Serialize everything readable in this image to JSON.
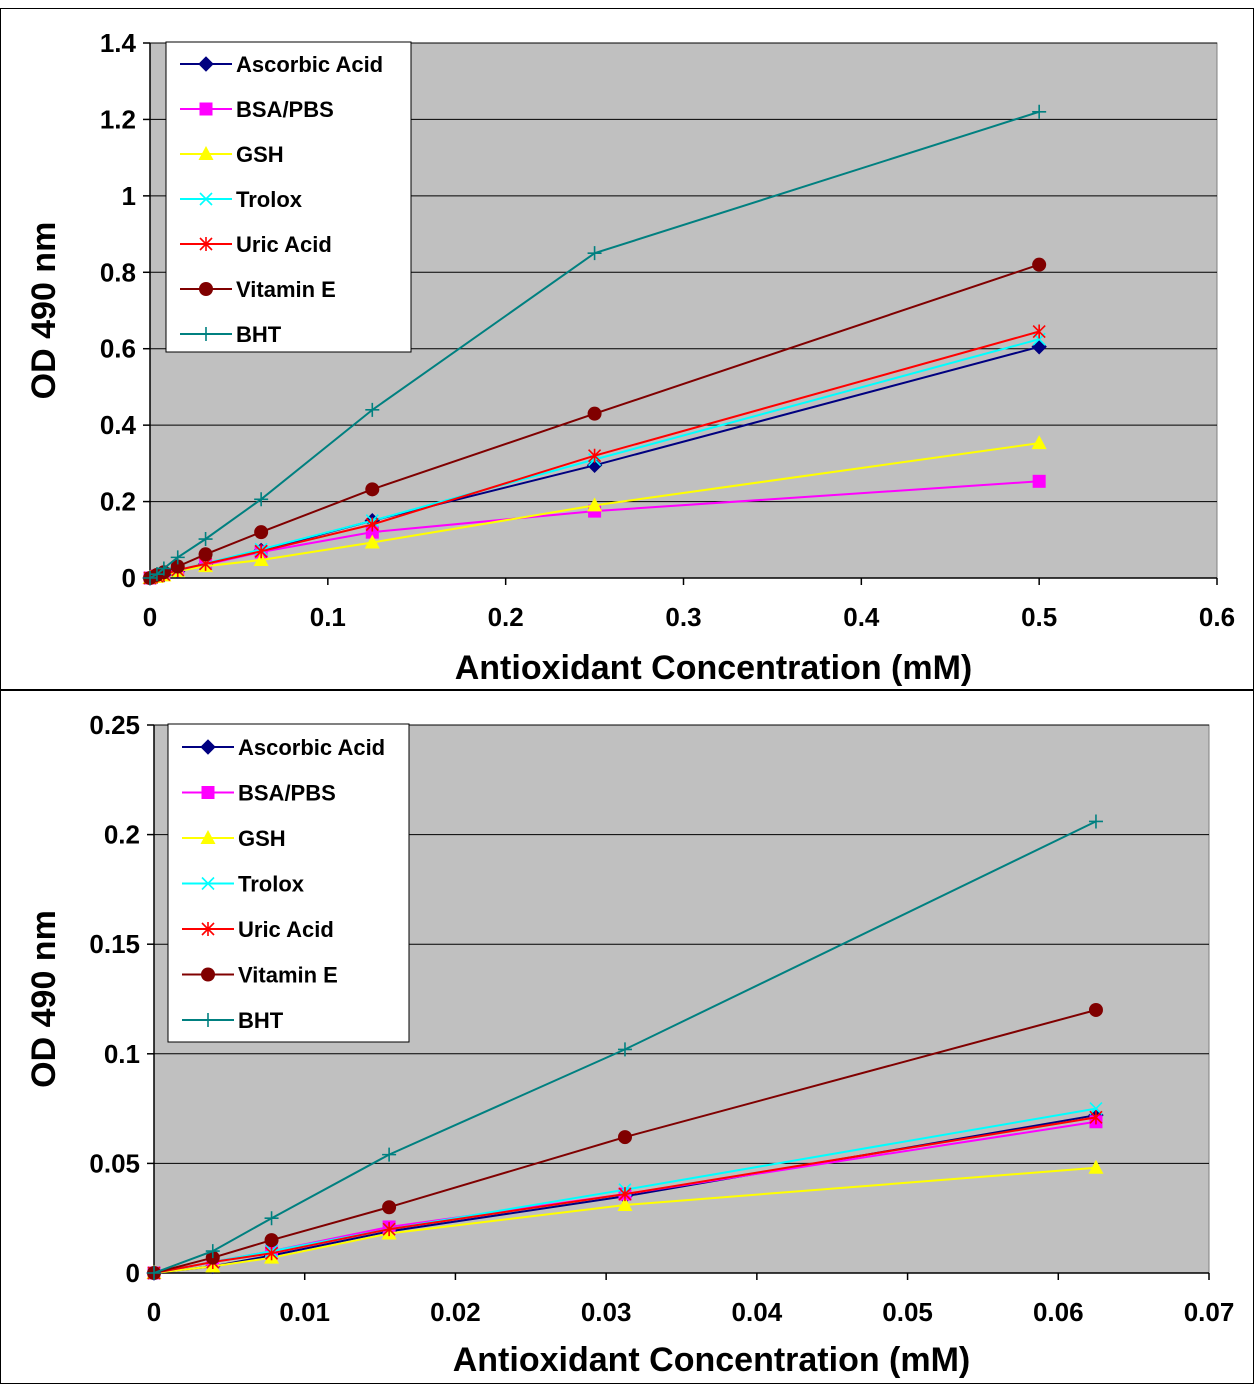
{
  "chart_data": [
    {
      "type": "line",
      "title": "",
      "xlabel": "Antioxidant Concentration (mM)",
      "ylabel": "OD 490 nm",
      "xlim": [
        0,
        0.6
      ],
      "ylim": [
        0,
        1.4
      ],
      "x_ticks": [
        0,
        0.1,
        0.2,
        0.3,
        0.4,
        0.5,
        0.6
      ],
      "y_ticks": [
        0,
        0.2,
        0.4,
        0.6,
        0.8,
        1,
        1.2,
        1.4
      ],
      "x_tick_labels": [
        "0",
        "0.1",
        "0.2",
        "0.3",
        "0.4",
        "0.5",
        "0.6"
      ],
      "y_tick_labels": [
        "0",
        "0.2",
        "0.4",
        "0.6",
        "0.8",
        "1",
        "1.2",
        "1.4"
      ],
      "grid": "horizontal",
      "plot_background": "#c0c0c0",
      "legend_position": "top-left",
      "x": [
        0,
        0.0039,
        0.0078,
        0.0156,
        0.03125,
        0.0625,
        0.125,
        0.25,
        0.5
      ],
      "series": [
        {
          "name": "Ascorbic Acid",
          "color": "#000080",
          "marker": "diamond",
          "values": [
            0,
            0.004,
            0.008,
            0.018,
            0.036,
            0.072,
            0.15,
            0.295,
            0.605
          ]
        },
        {
          "name": "BSA/PBS",
          "color": "#ff00ff",
          "marker": "square",
          "values": [
            0,
            0.005,
            0.009,
            0.02,
            0.035,
            0.068,
            0.12,
            0.175,
            0.253
          ]
        },
        {
          "name": "GSH",
          "color": "#ffff00",
          "marker": "triangle",
          "values": [
            0,
            0.003,
            0.007,
            0.018,
            0.031,
            0.047,
            0.093,
            0.19,
            0.353
          ]
        },
        {
          "name": "Trolox",
          "color": "#00ffff",
          "marker": "x",
          "values": [
            0,
            0.005,
            0.01,
            0.02,
            0.038,
            0.075,
            0.15,
            0.31,
            0.625
          ]
        },
        {
          "name": "Uric Acid",
          "color": "#ff0000",
          "marker": "star",
          "values": [
            0,
            0.005,
            0.009,
            0.021,
            0.037,
            0.07,
            0.14,
            0.32,
            0.645
          ]
        },
        {
          "name": "Vitamin E",
          "color": "#800000",
          "marker": "circle",
          "values": [
            0,
            0.008,
            0.015,
            0.03,
            0.062,
            0.12,
            0.232,
            0.43,
            0.82
          ]
        },
        {
          "name": "BHT",
          "color": "#008080",
          "marker": "plus",
          "values": [
            0,
            0.01,
            0.025,
            0.054,
            0.102,
            0.206,
            0.44,
            0.85,
            1.22
          ]
        }
      ]
    },
    {
      "type": "line",
      "title": "",
      "xlabel": "Antioxidant Concentration (mM)",
      "ylabel": "OD 490 nm",
      "xlim": [
        0,
        0.07
      ],
      "ylim": [
        0,
        0.25
      ],
      "x_ticks": [
        0,
        0.01,
        0.02,
        0.03,
        0.04,
        0.05,
        0.06,
        0.07
      ],
      "y_ticks": [
        0,
        0.05,
        0.1,
        0.15,
        0.2,
        0.25
      ],
      "x_tick_labels": [
        "0",
        "0.01",
        "0.02",
        "0.03",
        "0.04",
        "0.05",
        "0.06",
        "0.07"
      ],
      "y_tick_labels": [
        "0",
        "0.05",
        "0.1",
        "0.15",
        "0.2",
        "0.25"
      ],
      "grid": "horizontal",
      "plot_background": "#c0c0c0",
      "legend_position": "top-left",
      "x": [
        0,
        0.0039,
        0.0078,
        0.0156,
        0.03125,
        0.0625
      ],
      "series": [
        {
          "name": "Ascorbic Acid",
          "color": "#000080",
          "marker": "diamond",
          "values": [
            0,
            0.003,
            0.008,
            0.019,
            0.035,
            0.072
          ]
        },
        {
          "name": "BSA/PBS",
          "color": "#ff00ff",
          "marker": "square",
          "values": [
            0,
            0.005,
            0.01,
            0.021,
            0.036,
            0.069
          ]
        },
        {
          "name": "GSH",
          "color": "#ffff00",
          "marker": "triangle",
          "values": [
            0,
            0.003,
            0.007,
            0.018,
            0.031,
            0.048
          ]
        },
        {
          "name": "Trolox",
          "color": "#00ffff",
          "marker": "x",
          "values": [
            0,
            0.005,
            0.01,
            0.02,
            0.038,
            0.075
          ]
        },
        {
          "name": "Uric Acid",
          "color": "#ff0000",
          "marker": "star",
          "values": [
            0,
            0.005,
            0.009,
            0.02,
            0.036,
            0.071
          ]
        },
        {
          "name": "Vitamin E",
          "color": "#800000",
          "marker": "circle",
          "values": [
            0,
            0.007,
            0.015,
            0.03,
            0.062,
            0.12
          ]
        },
        {
          "name": "BHT",
          "color": "#008080",
          "marker": "plus",
          "values": [
            0,
            0.01,
            0.025,
            0.054,
            0.102,
            0.206
          ]
        }
      ]
    }
  ]
}
